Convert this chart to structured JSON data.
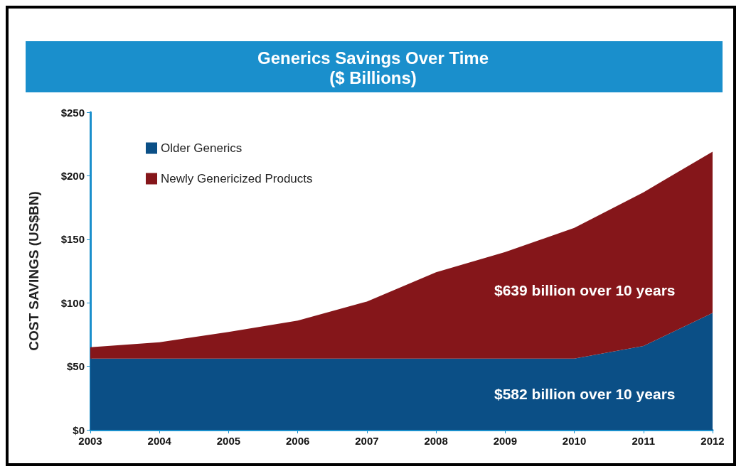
{
  "chart_data": {
    "type": "area",
    "title": "Generics Savings Over Time\n($ Billions)",
    "ylabel": "COST SAVINGS (US$BN)",
    "stacked": true,
    "categories": [
      "2003",
      "2004",
      "2005",
      "2006",
      "2007",
      "2008",
      "2009",
      "2010",
      "2011",
      "2012"
    ],
    "series": [
      {
        "name": "Older Generics",
        "color": "#0b4f86",
        "values": [
          56,
          56,
          56,
          56,
          56,
          56,
          56,
          56,
          66,
          92
        ]
      },
      {
        "name": "Newly Genericized Products",
        "color": "#85161a",
        "values": [
          9,
          13,
          21,
          30,
          45,
          68,
          84,
          103,
          121,
          127
        ]
      }
    ],
    "ylim": [
      0,
      250
    ],
    "yticks": [
      {
        "value": 0,
        "label": "$0"
      },
      {
        "value": 50,
        "label": "$50"
      },
      {
        "value": 100,
        "label": "$100"
      },
      {
        "value": 150,
        "label": "$150"
      },
      {
        "value": 200,
        "label": "$200"
      },
      {
        "value": 250,
        "label": "$250"
      }
    ],
    "grid": false,
    "legend": "top left",
    "marker": "none",
    "annotations": [
      "$639 billion over 10 years",
      "$582 billion over 10 years"
    ]
  }
}
